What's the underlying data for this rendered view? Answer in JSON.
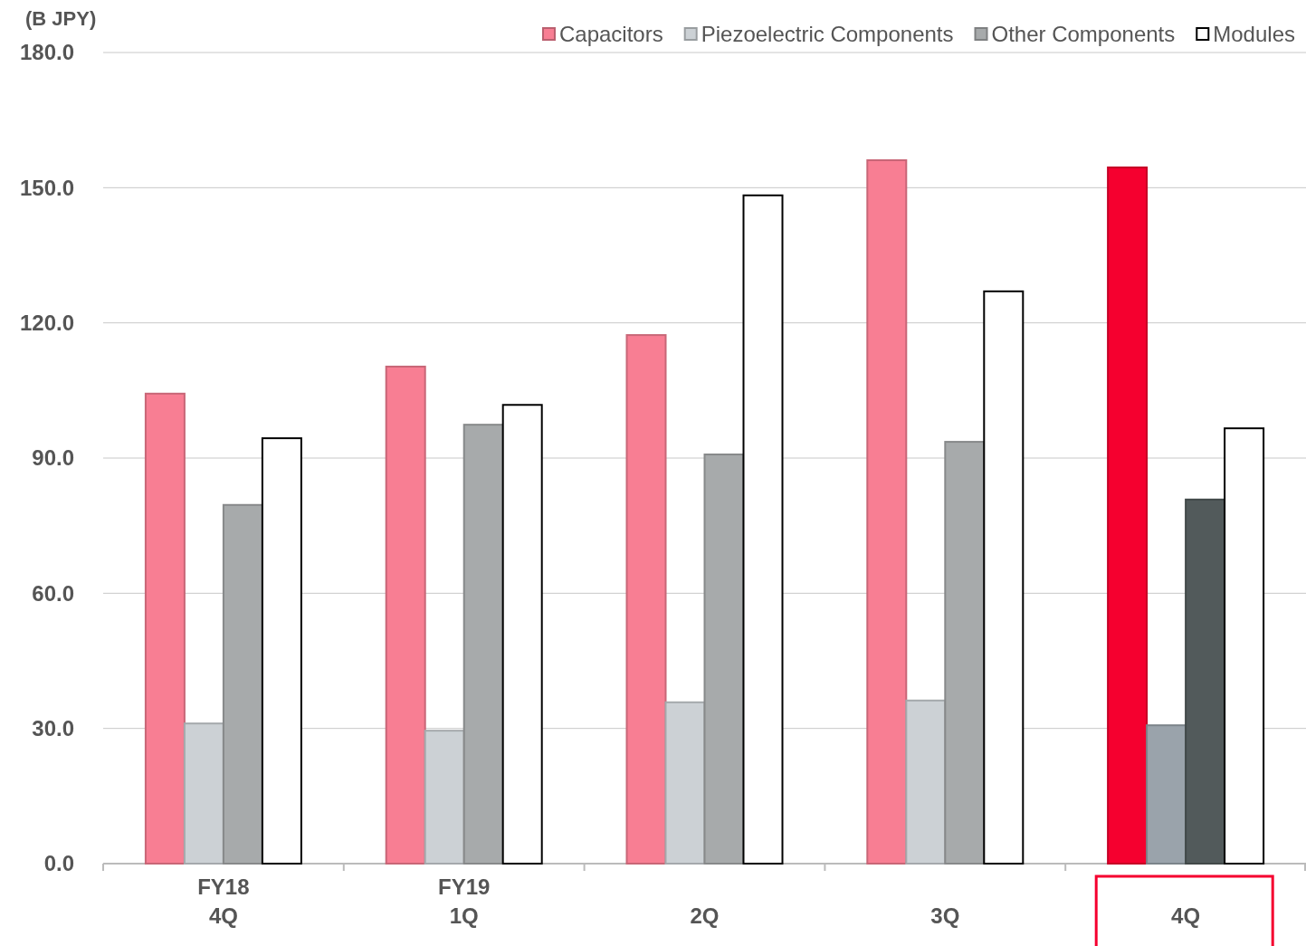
{
  "chart_data": {
    "type": "bar",
    "ylabel": "(B JPY)",
    "categories": [
      "FY18\n4Q",
      "FY19\n1Q",
      "2Q",
      "3Q",
      "4Q"
    ],
    "series": [
      {
        "name": "Capacitors",
        "color": "#f87e93",
        "colors": [
          "#f87e93",
          "#f87e93",
          "#f87e93",
          "#f87e93",
          "#f5002f"
        ],
        "values": [
          104.3,
          110.3,
          117.3,
          156.1,
          154.5
        ]
      },
      {
        "name": "Piezoelectric Components",
        "color": "#ccd1d5",
        "colors": [
          "#ccd1d5",
          "#ccd1d5",
          "#ccd1d5",
          "#ccd1d5",
          "#9aa3ab"
        ],
        "values": [
          31.1,
          29.5,
          35.8,
          36.2,
          30.7
        ]
      },
      {
        "name": "Other Components",
        "color": "#a7aaab",
        "colors": [
          "#a7aaab",
          "#a7aaab",
          "#a7aaab",
          "#a7aaab",
          "#525a5b"
        ],
        "values": [
          79.6,
          97.4,
          90.8,
          93.6,
          80.8
        ]
      },
      {
        "name": "Modules",
        "color": "#ffffff",
        "values": [
          94.4,
          101.8,
          148.3,
          127.0,
          96.6
        ]
      }
    ],
    "ylim": [
      0,
      180
    ],
    "yticks": [
      {
        "value": 0,
        "label": "0.0"
      },
      {
        "value": 30,
        "label": "30.0"
      },
      {
        "value": 60,
        "label": "60.0"
      },
      {
        "value": 90,
        "label": "90.0"
      },
      {
        "value": 120,
        "label": "120.0"
      },
      {
        "value": 150,
        "label": "150.0"
      },
      {
        "value": 180,
        "label": "180.0"
      }
    ],
    "grid": "y",
    "legend": "top right"
  }
}
